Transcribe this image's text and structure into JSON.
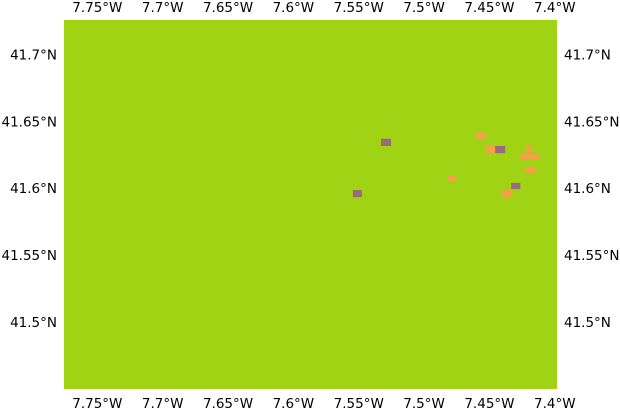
{
  "map": {
    "colors": {
      "background": "#a0d314",
      "patch_orange": "#f4a148",
      "patch_purple": "#9a6b7f"
    },
    "extent": {
      "lon_min": -7.7755,
      "lon_max": -7.3983,
      "lat_min": 41.4497,
      "lat_max": 41.7259
    },
    "x_ticks": [
      {
        "value": -7.75,
        "label": "7.75°W"
      },
      {
        "value": -7.7,
        "label": "7.7°W"
      },
      {
        "value": -7.65,
        "label": "7.65°W"
      },
      {
        "value": -7.6,
        "label": "7.6°W"
      },
      {
        "value": -7.55,
        "label": "7.55°W"
      },
      {
        "value": -7.5,
        "label": "7.5°W"
      },
      {
        "value": -7.45,
        "label": "7.45°W"
      },
      {
        "value": -7.4,
        "label": "7.4°W"
      }
    ],
    "y_ticks": [
      {
        "value": 41.7,
        "label": "41.7°N"
      },
      {
        "value": 41.65,
        "label": "41.65°N"
      },
      {
        "value": 41.6,
        "label": "41.6°N"
      },
      {
        "value": 41.55,
        "label": "41.55°N"
      },
      {
        "value": 41.5,
        "label": "41.5°N"
      }
    ],
    "patches": [
      {
        "category": "orange",
        "lon_min": -7.4601,
        "lon_max": -7.4525,
        "lat_min": 41.6363,
        "lat_max": 41.6417
      },
      {
        "category": "orange",
        "lon_min": -7.4525,
        "lon_max": -7.4448,
        "lat_min": 41.6262,
        "lat_max": 41.6316
      },
      {
        "category": "purple",
        "lon_min": -7.4456,
        "lon_max": -7.4379,
        "lat_min": 41.6262,
        "lat_max": 41.6316
      },
      {
        "category": "purple",
        "lon_min": -7.533,
        "lon_max": -7.5253,
        "lat_min": 41.6316,
        "lat_max": 41.637
      },
      {
        "category": "orange",
        "lon_min": -7.4218,
        "lon_max": -7.4172,
        "lat_min": 41.6269,
        "lat_max": 41.6316
      },
      {
        "category": "orange",
        "lon_min": -7.4264,
        "lon_max": -7.4118,
        "lat_min": 41.6215,
        "lat_max": 41.6262
      },
      {
        "category": "orange",
        "lon_min": -7.4226,
        "lon_max": -7.4149,
        "lat_min": 41.6114,
        "lat_max": 41.6161
      },
      {
        "category": "orange",
        "lon_min": -7.4816,
        "lon_max": -7.4755,
        "lat_min": 41.6047,
        "lat_max": 41.6094
      },
      {
        "category": "purple",
        "lon_min": -7.4334,
        "lon_max": -7.4264,
        "lat_min": 41.5993,
        "lat_max": 41.604
      },
      {
        "category": "orange",
        "lon_min": -7.4402,
        "lon_max": -7.4326,
        "lat_min": 41.5933,
        "lat_max": 41.5986
      },
      {
        "category": "purple",
        "lon_min": -7.5545,
        "lon_max": -7.5476,
        "lat_min": 41.5933,
        "lat_max": 41.5986
      }
    ]
  }
}
